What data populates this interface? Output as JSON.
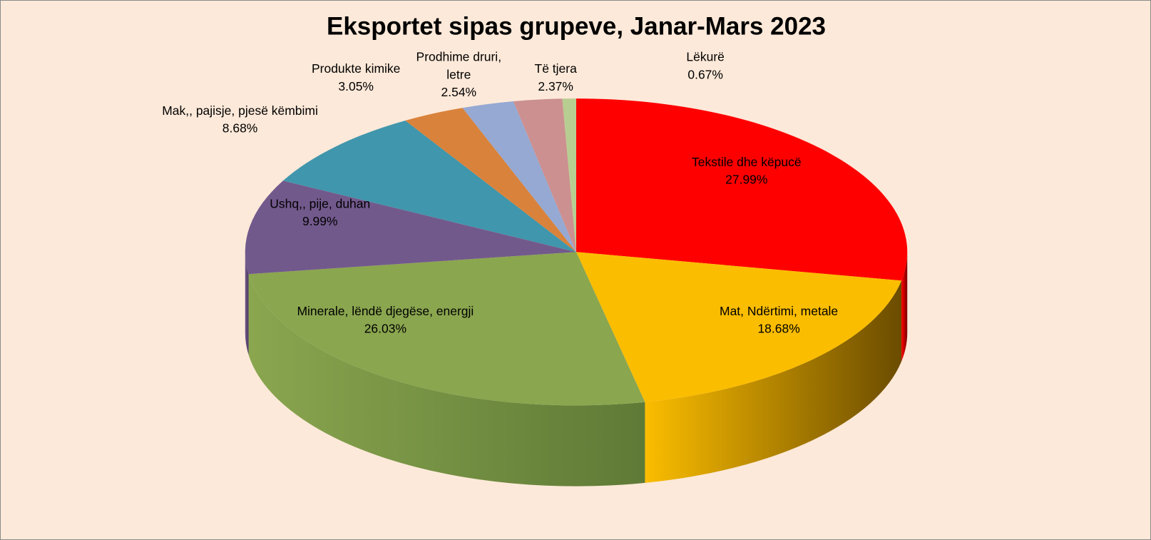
{
  "chart_data": {
    "type": "pie",
    "title": "Eksportet sipas grupeve, Janar-Mars 2023",
    "slices": [
      {
        "label": "Tekstile dhe këpucë",
        "value": 27.99,
        "value_label": "27.99%",
        "color": "#ff0000",
        "side": "#7a0000"
      },
      {
        "label": "Mat, Ndërtimi, metale",
        "value": 18.68,
        "value_label": "18.68%",
        "color": "#fbbd00",
        "side": "#6b4c00"
      },
      {
        "label": "Minerale, lëndë djegëse, energji",
        "value": 26.03,
        "value_label": "26.03%",
        "color": "#8aa64f",
        "side": "#5e7a36"
      },
      {
        "label": "Ushq,, pije, duhan",
        "value": 9.99,
        "value_label": "9.99%",
        "color": "#72598c",
        "side": "#4d3b60"
      },
      {
        "label": "Mak,, pajisje, pjesë këmbimi",
        "value": 8.68,
        "value_label": "8.68%",
        "color": "#4096ac",
        "side": "#2a6777"
      },
      {
        "label": "Produkte kimike",
        "value": 3.05,
        "value_label": "3.05%",
        "color": "#d9823b",
        "side": "#8f5221"
      },
      {
        "label": "Prodhime druri, letre",
        "value": 2.54,
        "value_label": "2.54%",
        "color": "#95a9d3",
        "side": "#5f6f92"
      },
      {
        "label": "Të tjera",
        "value": 2.37,
        "value_label": "2.37%",
        "color": "#cc9090",
        "side": "#8a5c5c"
      },
      {
        "label": "Lëkurë",
        "value": 0.67,
        "value_label": "0.67%",
        "color": "#b8cd91",
        "side": "#7e8f60"
      }
    ]
  }
}
